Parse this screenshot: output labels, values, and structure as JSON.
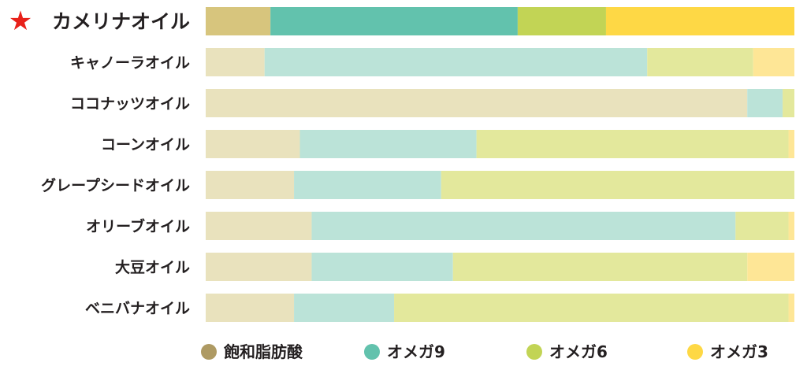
{
  "chart_data": {
    "type": "bar",
    "orientation": "horizontal",
    "stacked": true,
    "normalized": true,
    "title": "",
    "xlabel": "",
    "ylabel": "",
    "xlim": [
      0,
      100
    ],
    "grid": false,
    "legend_position": "bottom",
    "highlight_marker": "★",
    "highlight_color": "#e8211a",
    "categories": [
      "カメリナオイル",
      "キャノーラオイル",
      "ココナッツオイル",
      "コーンオイル",
      "グレープシードオイル",
      "オリーブオイル",
      "大豆オイル",
      "ベニバナオイル"
    ],
    "highlighted": [
      true,
      false,
      false,
      false,
      false,
      false,
      false,
      false
    ],
    "series": [
      {
        "name": "飽和脂肪酸",
        "color": "#d7c57d",
        "muted_color": "#e9e2bd",
        "legend_color": "#ae9a63",
        "values": [
          11,
          10,
          92,
          16,
          15,
          18,
          18,
          15
        ]
      },
      {
        "name": "オメガ9",
        "color": "#62c2ad",
        "muted_color": "#bbe3d8",
        "legend_color": "#62c2ad",
        "values": [
          42,
          65,
          6,
          30,
          25,
          72,
          24,
          17
        ]
      },
      {
        "name": "オメガ6",
        "color": "#c2d455",
        "muted_color": "#e3e89c",
        "legend_color": "#c2d455",
        "values": [
          15,
          18,
          2,
          53,
          60,
          9,
          50,
          67
        ]
      },
      {
        "name": "オメガ3",
        "color": "#fed845",
        "muted_color": "#fee696",
        "legend_color": "#fed845",
        "values": [
          32,
          7,
          0,
          1,
          0,
          1,
          8,
          1
        ]
      }
    ]
  }
}
